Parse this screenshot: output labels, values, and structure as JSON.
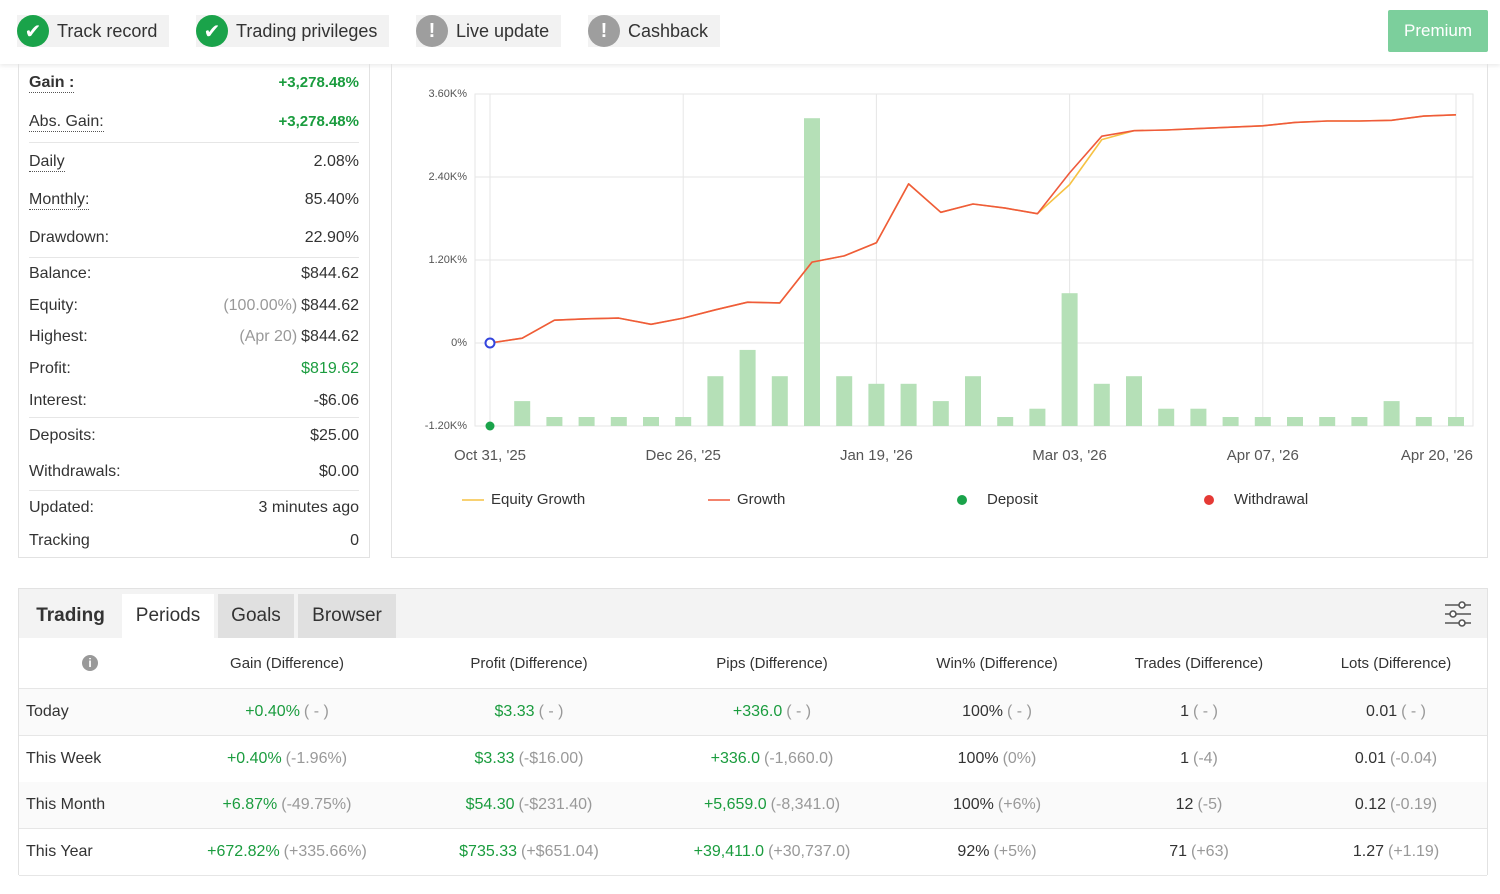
{
  "badges": [
    {
      "label": "Track record",
      "status": "ok"
    },
    {
      "label": "Trading privileges",
      "status": "ok"
    },
    {
      "label": "Live update",
      "status": "warn"
    },
    {
      "label": "Cashback",
      "status": "warn"
    }
  ],
  "premium": "Premium",
  "stats": [
    [
      {
        "label": "Gain :",
        "value": "+3,278.48%",
        "color": "#1a9c3e"
      },
      {
        "label": "Abs. Gain:",
        "value": "+3,278.48%",
        "color": "#1a9c3e"
      }
    ],
    [
      {
        "label": "Daily",
        "value": "2.08%"
      },
      {
        "label": "Monthly:",
        "value": "85.40%"
      },
      {
        "label": "Drawdown:",
        "value": "22.90%"
      }
    ],
    [
      {
        "label": "Balance:",
        "value": "$844.62"
      },
      {
        "label": "Equity:",
        "note": "(100.00%)",
        "value": "$844.62"
      },
      {
        "label": "Highest:",
        "note": "(Apr 20)",
        "value": "$844.62"
      },
      {
        "label": "Profit:",
        "value": "$819.62",
        "color": "#1a9c3e"
      },
      {
        "label": "Interest:",
        "value": "-$6.06"
      }
    ],
    [
      {
        "label": "Deposits:",
        "value": "$25.00"
      },
      {
        "label": "Withdrawals:",
        "value": "$0.00"
      }
    ],
    [
      {
        "label": "Updated:",
        "value": "3 minutes ago"
      },
      {
        "label": "Tracking",
        "value": "0"
      }
    ]
  ],
  "chart_data": {
    "type": "combo",
    "categories": [
      "Oct 31, '25",
      null,
      null,
      null,
      null,
      null,
      "Dec 26, '25",
      null,
      null,
      null,
      null,
      null,
      "Jan 19, '26",
      null,
      null,
      null,
      null,
      null,
      "Mar 03, '26",
      null,
      null,
      null,
      null,
      null,
      "Apr 07, '26",
      null,
      null,
      null,
      null,
      null,
      "Apr 20, '26"
    ],
    "ylim": [
      -1200,
      3600
    ],
    "yticks": [
      {
        "value": -1200,
        "label": "-1.20K%"
      },
      {
        "value": 0,
        "label": "0%"
      },
      {
        "value": 1200,
        "label": "1.20K%"
      },
      {
        "value": 2400,
        "label": "2.40K%"
      },
      {
        "value": 3600,
        "label": "3.60K%"
      }
    ],
    "grid": true,
    "bars": {
      "color": "#b5e0b7",
      "values": [
        null,
        -840,
        -1070,
        -1070,
        -1070,
        -1070,
        -1070,
        -480,
        -100,
        -480,
        3250,
        -480,
        -590,
        -590,
        -840,
        -480,
        -1070,
        -950,
        720,
        -590,
        -480,
        -950,
        -950,
        -1070,
        -1070,
        -1070,
        -1070,
        -1070,
        -840,
        -1070,
        -1070
      ]
    },
    "series": [
      {
        "name": "Equity Growth",
        "type": "line",
        "color": "#f6c244",
        "values": [
          0,
          70,
          330,
          350,
          360,
          270,
          360,
          480,
          590,
          580,
          1170,
          1260,
          1450,
          2300,
          1890,
          2010,
          1950,
          1870,
          2290,
          2940,
          3070,
          3080,
          3100,
          3120,
          3140,
          3190,
          3210,
          3210,
          3220,
          3280,
          3300
        ]
      },
      {
        "name": "Growth",
        "type": "line",
        "color": "#ef5a3c",
        "values": [
          0,
          70,
          330,
          350,
          360,
          270,
          360,
          480,
          590,
          580,
          1170,
          1260,
          1450,
          2300,
          1890,
          2010,
          1950,
          1870,
          2460,
          2990,
          3070,
          3080,
          3100,
          3120,
          3140,
          3190,
          3210,
          3210,
          3220,
          3280,
          3300
        ]
      },
      {
        "name": "Deposit",
        "type": "point",
        "color": "#1aa34a",
        "values": [
          -1200,
          null,
          null,
          null,
          null,
          null,
          null,
          null,
          null,
          null,
          null,
          null,
          null,
          null,
          null,
          null,
          null,
          null,
          null,
          null,
          null,
          null,
          null,
          null,
          null,
          null,
          null,
          null,
          null,
          null,
          null
        ]
      },
      {
        "name": "Withdrawal",
        "type": "point",
        "color": "#e53935",
        "values": [
          null,
          null,
          null,
          null,
          null,
          null,
          null,
          null,
          null,
          null,
          null,
          null,
          null,
          null,
          null,
          null,
          null,
          null,
          null,
          null,
          null,
          null,
          null,
          null,
          null,
          null,
          null,
          null,
          null,
          null,
          null
        ]
      }
    ]
  },
  "table": {
    "tabs": [
      "Trading",
      "Periods",
      "Goals",
      "Browser"
    ],
    "headers": [
      "Gain (Difference)",
      "Profit (Difference)",
      "Pips (Difference)",
      "Win% (Difference)",
      "Trades (Difference)",
      "Lots (Difference)"
    ],
    "rows": [
      {
        "label": "Today",
        "cells": [
          {
            "value": "+0.40%",
            "diff": "( - )"
          },
          {
            "value": "$3.33",
            "diff": "( - )"
          },
          {
            "value": "+336.0",
            "diff": "( - )"
          },
          {
            "value": "100%",
            "diff": "( - )"
          },
          {
            "value": "1",
            "diff": "( - )"
          },
          {
            "value": "0.01",
            "diff": "( - )"
          }
        ]
      },
      {
        "label": "This Week",
        "cells": [
          {
            "value": "+0.40%",
            "diff": "(-1.96%)"
          },
          {
            "value": "$3.33",
            "diff": "(-$16.00)"
          },
          {
            "value": "+336.0",
            "diff": "(-1,660.0)"
          },
          {
            "value": "100%",
            "diff": "(0%)"
          },
          {
            "value": "1",
            "diff": "(-4)"
          },
          {
            "value": "0.01",
            "diff": "(-0.04)"
          }
        ]
      },
      {
        "label": "This Month",
        "cells": [
          {
            "value": "+6.87%",
            "diff": "(-49.75%)"
          },
          {
            "value": "$54.30",
            "diff": "(-$231.40)"
          },
          {
            "value": "+5,659.0",
            "diff": "(-8,341.0)"
          },
          {
            "value": "100%",
            "diff": "(+6%)"
          },
          {
            "value": "12",
            "diff": "(-5)"
          },
          {
            "value": "0.12",
            "diff": "(-0.19)"
          }
        ]
      },
      {
        "label": "This Year",
        "cells": [
          {
            "value": "+672.82%",
            "diff": "(+335.66%)"
          },
          {
            "value": "$735.33",
            "diff": "(+$651.04)"
          },
          {
            "value": "+39,411.0",
            "diff": "(+30,737.0)"
          },
          {
            "value": "92%",
            "diff": "(+5%)"
          },
          {
            "value": "71",
            "diff": "(+63)"
          },
          {
            "value": "1.27",
            "diff": "(+1.19)"
          }
        ]
      }
    ]
  }
}
